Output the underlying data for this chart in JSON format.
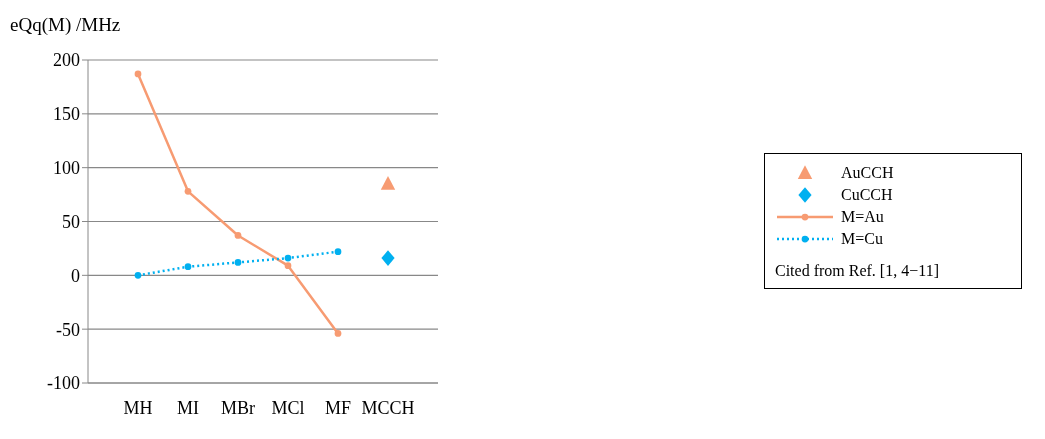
{
  "chart_data": {
    "type": "line",
    "ylabel": "eQq(M) /MHz",
    "categories": [
      "MH",
      "MI",
      "MBr",
      "MCl",
      "MF",
      "MCCH"
    ],
    "series": [
      {
        "name": "AuCCH",
        "type": "scatter",
        "marker": "triangle",
        "color": "#f79b72",
        "values": [
          null,
          null,
          null,
          null,
          null,
          85
        ]
      },
      {
        "name": "CuCCH",
        "type": "scatter",
        "marker": "diamond",
        "color": "#00b0f0",
        "values": [
          null,
          null,
          null,
          null,
          null,
          16
        ]
      },
      {
        "name": "M=Au",
        "type": "line",
        "marker": "circle",
        "line_style": "solid",
        "color": "#f79b72",
        "values": [
          187,
          78,
          37,
          9,
          -54,
          null
        ]
      },
      {
        "name": "M=Cu",
        "type": "line",
        "marker": "circle",
        "line_style": "dotted",
        "color": "#00b0f0",
        "values": [
          0,
          8,
          12,
          16,
          22,
          null
        ]
      }
    ],
    "ylim": [
      -100,
      200
    ],
    "yticks": [
      -100,
      -50,
      0,
      50,
      100,
      150,
      200
    ],
    "grid": "y",
    "legend": "right",
    "annotations": [
      "Cited from Ref. [1, 4−11]"
    ]
  }
}
